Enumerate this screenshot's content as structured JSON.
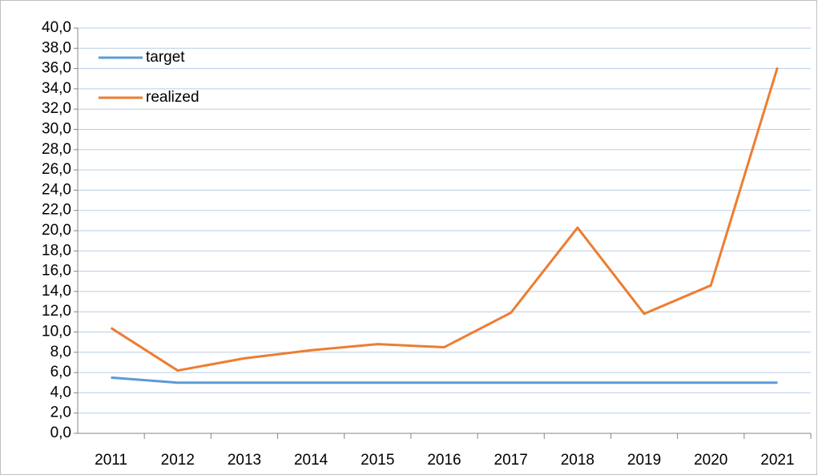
{
  "chart_data": {
    "type": "line",
    "categories": [
      "2011",
      "2012",
      "2013",
      "2014",
      "2015",
      "2016",
      "2017",
      "2018",
      "2019",
      "2020",
      "2021"
    ],
    "series": [
      {
        "name": "target",
        "color": "#5b9bd5",
        "values": [
          5.5,
          5.0,
          5.0,
          5.0,
          5.0,
          5.0,
          5.0,
          5.0,
          5.0,
          5.0,
          5.0
        ]
      },
      {
        "name": "realized",
        "color": "#ed7d31",
        "values": [
          10.4,
          6.2,
          7.4,
          8.2,
          8.8,
          8.5,
          11.9,
          20.3,
          11.8,
          14.6,
          36.1
        ]
      }
    ],
    "ylim": [
      0,
      40
    ],
    "yticks": [
      {
        "value": 0,
        "label": "0,0"
      },
      {
        "value": 2,
        "label": "2,0"
      },
      {
        "value": 4,
        "label": "4,0"
      },
      {
        "value": 6,
        "label": "6,0"
      },
      {
        "value": 8,
        "label": "8,0"
      },
      {
        "value": 10,
        "label": "10,0"
      },
      {
        "value": 12,
        "label": "12,0"
      },
      {
        "value": 14,
        "label": "14,0"
      },
      {
        "value": 16,
        "label": "16,0"
      },
      {
        "value": 18,
        "label": "18,0"
      },
      {
        "value": 20,
        "label": "20,0"
      },
      {
        "value": 22,
        "label": "22,0"
      },
      {
        "value": 24,
        "label": "24,0"
      },
      {
        "value": 26,
        "label": "26,0"
      },
      {
        "value": 28,
        "label": "28,0"
      },
      {
        "value": 30,
        "label": "30,0"
      },
      {
        "value": 32,
        "label": "32,0"
      },
      {
        "value": 34,
        "label": "34,0"
      },
      {
        "value": 36,
        "label": "36,0"
      },
      {
        "value": 38,
        "label": "38,0"
      },
      {
        "value": 40,
        "label": "40,0"
      }
    ],
    "grid": true,
    "legend": "top-left"
  }
}
